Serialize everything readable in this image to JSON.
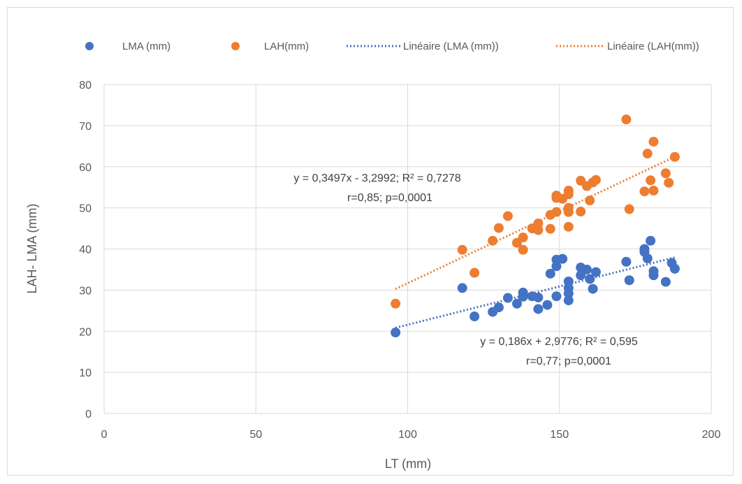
{
  "chart_data": {
    "type": "scatter",
    "xlabel": "LT (mm)",
    "ylabel": "LAH- LMA (mm)",
    "xlim": [
      0,
      200
    ],
    "ylim": [
      0,
      80
    ],
    "x_ticks": [
      0,
      50,
      100,
      150,
      200
    ],
    "y_ticks": [
      0,
      10,
      20,
      30,
      40,
      50,
      60,
      70,
      80
    ],
    "grid": true,
    "legend_position": "top",
    "series": [
      {
        "name": "LMA (mm)",
        "color": "#4472c4",
        "points": [
          [
            96,
            19.7
          ],
          [
            118,
            30.5
          ],
          [
            122,
            23.6
          ],
          [
            128,
            24.7
          ],
          [
            130,
            25.8
          ],
          [
            133,
            28.1
          ],
          [
            136,
            26.7
          ],
          [
            138,
            28.4
          ],
          [
            138,
            29.4
          ],
          [
            141,
            28.5
          ],
          [
            143,
            25.4
          ],
          [
            143,
            28.2
          ],
          [
            146,
            26.4
          ],
          [
            147,
            34.0
          ],
          [
            149,
            28.5
          ],
          [
            149,
            35.8
          ],
          [
            149,
            37.4
          ],
          [
            151,
            37.6
          ],
          [
            153,
            27.5
          ],
          [
            153,
            29.2
          ],
          [
            153,
            30.5
          ],
          [
            153,
            32.1
          ],
          [
            157,
            33.6
          ],
          [
            157,
            35.5
          ],
          [
            159,
            35.0
          ],
          [
            160,
            32.7
          ],
          [
            161,
            30.3
          ],
          [
            162,
            34.4
          ],
          [
            172,
            36.9
          ],
          [
            173,
            32.4
          ],
          [
            178,
            39.3
          ],
          [
            178,
            40.0
          ],
          [
            179,
            37.7
          ],
          [
            180,
            42.0
          ],
          [
            181,
            33.6
          ],
          [
            181,
            34.6
          ],
          [
            185,
            32.0
          ],
          [
            187,
            36.6
          ],
          [
            188,
            35.2
          ]
        ]
      },
      {
        "name": "LAH(mm)",
        "color": "#ed7d31",
        "points": [
          [
            96,
            26.7
          ],
          [
            118,
            39.8
          ],
          [
            122,
            34.2
          ],
          [
            128,
            42.0
          ],
          [
            130,
            45.1
          ],
          [
            133,
            48.0
          ],
          [
            136,
            41.5
          ],
          [
            138,
            42.8
          ],
          [
            138,
            39.8
          ],
          [
            141,
            45.0
          ],
          [
            143,
            44.6
          ],
          [
            143,
            46.2
          ],
          [
            147,
            48.3
          ],
          [
            147,
            44.9
          ],
          [
            149,
            49.0
          ],
          [
            149,
            52.4
          ],
          [
            149,
            53.0
          ],
          [
            151,
            52.2
          ],
          [
            153,
            45.4
          ],
          [
            153,
            49.0
          ],
          [
            153,
            50.0
          ],
          [
            153,
            53.3
          ],
          [
            153,
            54.2
          ],
          [
            157,
            49.1
          ],
          [
            157,
            56.6
          ],
          [
            159,
            55.3
          ],
          [
            160,
            51.8
          ],
          [
            161,
            56.2
          ],
          [
            162,
            56.8
          ],
          [
            172,
            71.5
          ],
          [
            173,
            49.7
          ],
          [
            178,
            54.0
          ],
          [
            179,
            63.2
          ],
          [
            180,
            56.7
          ],
          [
            181,
            66.1
          ],
          [
            181,
            54.2
          ],
          [
            185,
            58.4
          ],
          [
            186,
            56.1
          ],
          [
            188,
            62.4
          ]
        ]
      }
    ],
    "trendlines": [
      {
        "name": "Linéaire (LMA (mm))",
        "color": "#4472c4",
        "slope": 0.186,
        "intercept": 2.9776,
        "x_range": [
          96,
          188
        ],
        "equation": "y = 0,186x + 2,9776; R² = 0,595",
        "stats": "r=0,77; p=0,0001"
      },
      {
        "name": "Linéaire (LAH(mm))",
        "color": "#ed7d31",
        "slope": 0.3497,
        "intercept": -3.2992,
        "x_range": [
          96,
          188
        ],
        "equation": "y = 0,3497x - 3,2992; R² = 0,7278",
        "stats": "r=0,85; p=0,0001"
      }
    ]
  }
}
